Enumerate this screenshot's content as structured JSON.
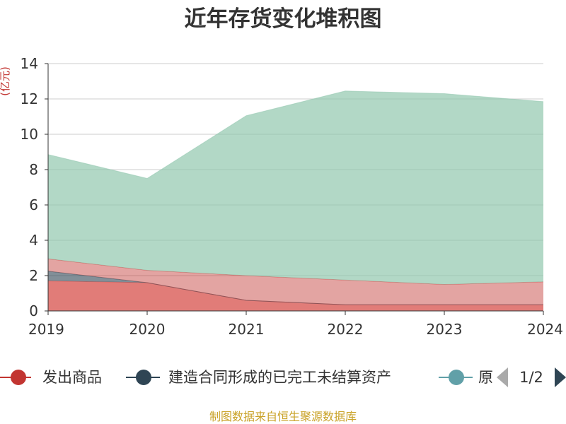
{
  "title": "近年存货变化堆积图",
  "source_note": "制图数据来自恒生聚源数据库",
  "legend": {
    "items": [
      {
        "label": "发出商品",
        "color": "#c23531"
      },
      {
        "label": "建造合同形成的已完工未结算资产",
        "color": "#2f4554"
      },
      {
        "label": "原",
        "color": "#61a0a8"
      }
    ],
    "page": "1/2"
  },
  "chart_data": {
    "type": "area",
    "stacked": true,
    "title": "近年存货变化堆积图",
    "ylabel": "(亿元)",
    "xlabel": "",
    "x": [
      "2019",
      "2020",
      "2021",
      "2022",
      "2023",
      "2024"
    ],
    "ylim": [
      0,
      14
    ],
    "yticks": [
      0,
      2,
      4,
      6,
      8,
      10,
      12,
      14
    ],
    "grid": true,
    "legend_position": "bottom",
    "series": [
      {
        "name": "发出商品",
        "color": "#d7504b",
        "values": [
          1.7,
          1.6,
          0.6,
          0.35,
          0.35,
          0.35
        ]
      },
      {
        "name": "建造合同形成的已完工未结算资产",
        "color": "#2f4554",
        "values": [
          0.55,
          0.0,
          0.0,
          0.0,
          0.0,
          0.0
        ]
      },
      {
        "name": "",
        "color": "#c23531",
        "values": [
          0.7,
          0.7,
          1.4,
          1.4,
          1.15,
          1.3
        ]
      },
      {
        "name": "",
        "color": "#91c7ae",
        "values": [
          5.9,
          5.2,
          9.05,
          10.7,
          10.8,
          10.2
        ]
      }
    ],
    "fill_opacity": [
      0.75,
      0.6,
      0.45,
      0.7
    ]
  }
}
